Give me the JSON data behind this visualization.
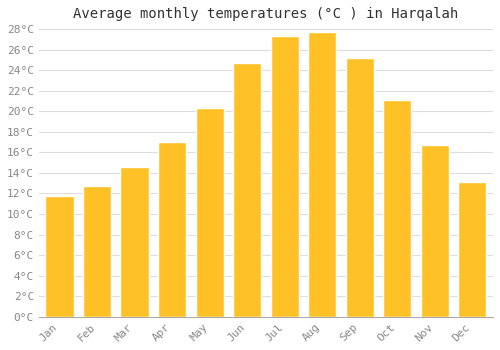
{
  "title": "Average monthly temperatures (°C ) in Harqalah",
  "months": [
    "Jan",
    "Feb",
    "Mar",
    "Apr",
    "May",
    "Jun",
    "Jul",
    "Aug",
    "Sep",
    "Oct",
    "Nov",
    "Dec"
  ],
  "values": [
    11.8,
    12.7,
    14.6,
    17.0,
    20.3,
    24.7,
    27.3,
    27.7,
    25.2,
    21.1,
    16.7,
    13.1
  ],
  "bar_color": "#FFC125",
  "bar_edge_color": "#FFFFFF",
  "background_color": "#FFFFFF",
  "grid_color": "#DDDDDD",
  "ylim": [
    0,
    28
  ],
  "ytick_max": 28,
  "ytick_step": 2,
  "title_fontsize": 10,
  "tick_fontsize": 8,
  "font_family": "monospace",
  "bar_width": 0.75
}
